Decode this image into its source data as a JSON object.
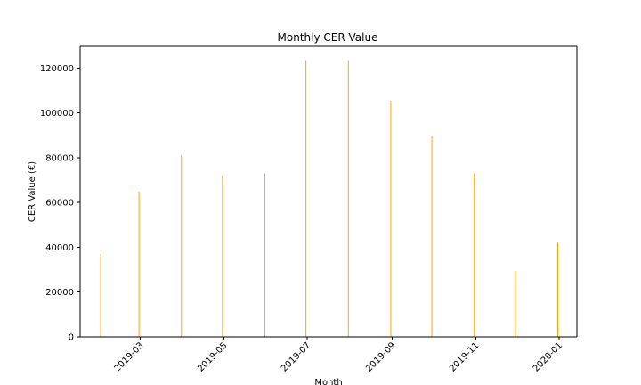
{
  "chart_data": {
    "type": "bar",
    "title": "Monthly CER Value",
    "xlabel": "Month",
    "ylabel": "CER Value (€)",
    "x": [
      "2019-01-31",
      "2019-02-28",
      "2019-03-31",
      "2019-04-30",
      "2019-05-31",
      "2019-06-30",
      "2019-07-31",
      "2019-08-31",
      "2019-09-30",
      "2019-10-31",
      "2019-11-30",
      "2019-12-31"
    ],
    "values": [
      37000,
      65000,
      81000,
      72000,
      73000,
      123500,
      123500,
      105500,
      89500,
      73000,
      29500,
      42000
    ],
    "xlim": [
      "2019-01-16",
      "2020-01-14"
    ],
    "ylim": [
      0,
      129675
    ],
    "yticks": [
      0,
      20000,
      40000,
      60000,
      80000,
      100000,
      120000
    ],
    "ytick_labels": [
      "0",
      "20000",
      "40000",
      "60000",
      "80000",
      "100000",
      "120000"
    ],
    "xticks": [
      "2019-03-01",
      "2019-05-01",
      "2019-07-01",
      "2019-09-01",
      "2019-11-01",
      "2020-01-01"
    ],
    "xtick_labels": [
      "2019-03",
      "2019-05",
      "2019-07",
      "2019-09",
      "2019-11",
      "2020-01"
    ],
    "bar_color": "#ffa500",
    "grid": false,
    "legend": "none"
  }
}
